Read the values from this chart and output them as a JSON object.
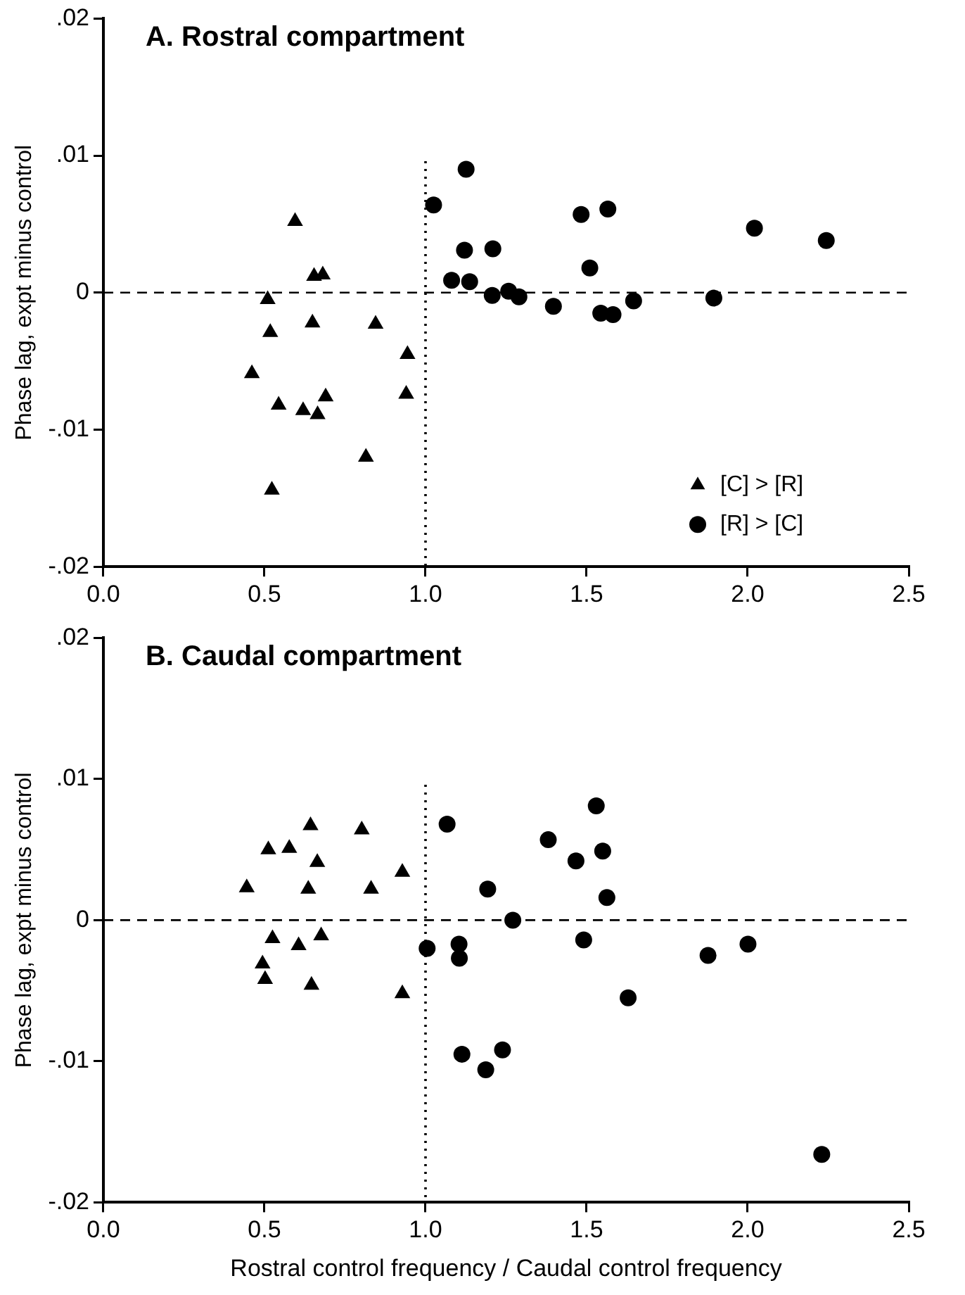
{
  "chart_data": [
    {
      "type": "scatter",
      "title": "A. Rostral compartment",
      "ylabel": "Phase lag, expt minus control",
      "xlim": [
        0,
        2.5
      ],
      "ylim": [
        -0.02,
        0.02
      ],
      "xticks": [
        {
          "value": 0,
          "label": "0.0"
        },
        {
          "value": 0.5,
          "label": "0.5"
        },
        {
          "value": 1,
          "label": "1.0"
        },
        {
          "value": 1.5,
          "label": "1.5"
        },
        {
          "value": 2,
          "label": "2.0"
        },
        {
          "value": 2.5,
          "label": "2.5"
        }
      ],
      "yticks": [
        {
          "value": -0.02,
          "label": "-.02"
        },
        {
          "value": -0.01,
          "label": "-.01"
        },
        0,
        {
          "value": 0.01,
          "label": ".01"
        },
        {
          "value": 0.02,
          "label": ".02"
        }
      ],
      "grid": false,
      "legend": "bottom right",
      "ref_lines": [
        {
          "axis": "y",
          "value": 0,
          "line_style": "dashed",
          "color": "#000000"
        },
        {
          "axis": "x",
          "value": 1,
          "line_style": "dotted",
          "color": "#000000"
        }
      ],
      "series": [
        {
          "name": "[C] > [R]",
          "color": "#000000",
          "marker": "triangle",
          "x": [
            0.595,
            0.654,
            0.681,
            0.51,
            0.518,
            0.649,
            0.845,
            0.461,
            0.544,
            0.62,
            0.665,
            0.69,
            0.815,
            0.523,
            0.944,
            0.94
          ],
          "values": [
            0.0052,
            0.0012,
            0.0013,
            -0.0005,
            -0.0029,
            -0.0022,
            -0.0023,
            -0.0059,
            -0.0082,
            -0.0086,
            -0.0089,
            -0.0076,
            -0.012,
            -0.0144,
            -0.0045,
            -0.0074
          ]
        },
        {
          "name": "[R] > [C]",
          "color": "#000000",
          "marker": "circle",
          "x": [
            1.025,
            1.126,
            1.121,
            1.209,
            1.081,
            1.137,
            1.207,
            1.258,
            1.29,
            1.397,
            1.483,
            1.566,
            1.51,
            1.544,
            1.582,
            1.646,
            1.895,
            2.021,
            2.244
          ],
          "values": [
            0.0064,
            0.009,
            0.0031,
            0.0032,
            0.0009,
            0.0008,
            -0.0002,
            0.0001,
            -0.0003,
            -0.001,
            0.0057,
            0.0061,
            0.0018,
            -0.0015,
            -0.0016,
            -0.0006,
            -0.0004,
            0.0047,
            0.0038
          ]
        }
      ]
    },
    {
      "type": "scatter",
      "title": "B. Caudal compartment",
      "xlabel": "Rostral control frequency / Caudal control frequency",
      "ylabel": "Phase lag, expt minus control",
      "xlim": [
        0,
        2.5
      ],
      "ylim": [
        -0.02,
        0.02
      ],
      "xticks": [
        {
          "value": 0,
          "label": "0.0"
        },
        {
          "value": 0.5,
          "label": "0.5"
        },
        {
          "value": 1,
          "label": "1.0"
        },
        {
          "value": 1.5,
          "label": "1.5"
        },
        {
          "value": 2,
          "label": "2.0"
        },
        {
          "value": 2.5,
          "label": "2.5"
        }
      ],
      "yticks": [
        {
          "value": -0.02,
          "label": "-.02"
        },
        {
          "value": -0.01,
          "label": "-.01"
        },
        0,
        {
          "value": 0.01,
          "label": ".01"
        },
        {
          "value": 0.02,
          "label": ".02"
        }
      ],
      "grid": false,
      "ref_lines": [
        {
          "axis": "y",
          "value": 0,
          "line_style": "dashed",
          "color": "#000000"
        },
        {
          "axis": "x",
          "value": 1,
          "line_style": "dotted",
          "color": "#000000"
        }
      ],
      "series": [
        {
          "color": "#000000",
          "marker": "triangle",
          "x": [
            0.445,
            0.512,
            0.577,
            0.643,
            0.664,
            0.636,
            0.802,
            0.831,
            0.525,
            0.606,
            0.676,
            0.494,
            0.502,
            0.646,
            0.928,
            0.928
          ],
          "values": [
            0.0023,
            0.005,
            0.0051,
            0.0067,
            0.0041,
            0.0022,
            0.0064,
            0.0022,
            -0.0013,
            -0.0018,
            -0.0011,
            -0.0031,
            -0.0042,
            -0.0046,
            0.0034,
            -0.0052
          ]
        },
        {
          "color": "#000000",
          "marker": "circle",
          "x": [
            1.067,
            1.005,
            1.104,
            1.105,
            1.193,
            1.271,
            1.113,
            1.187,
            1.239,
            1.381,
            1.467,
            1.53,
            1.55,
            1.563,
            1.491,
            1.629,
            1.877,
            2.001,
            2.23
          ],
          "values": [
            0.0068,
            -0.002,
            -0.0017,
            -0.0027,
            0.0022,
            0,
            -0.0095,
            -0.0106,
            -0.0092,
            0.0057,
            0.0042,
            0.0081,
            0.0049,
            0.0016,
            -0.0014,
            -0.0055,
            -0.0025,
            -0.0017,
            -0.0166
          ]
        }
      ]
    }
  ]
}
